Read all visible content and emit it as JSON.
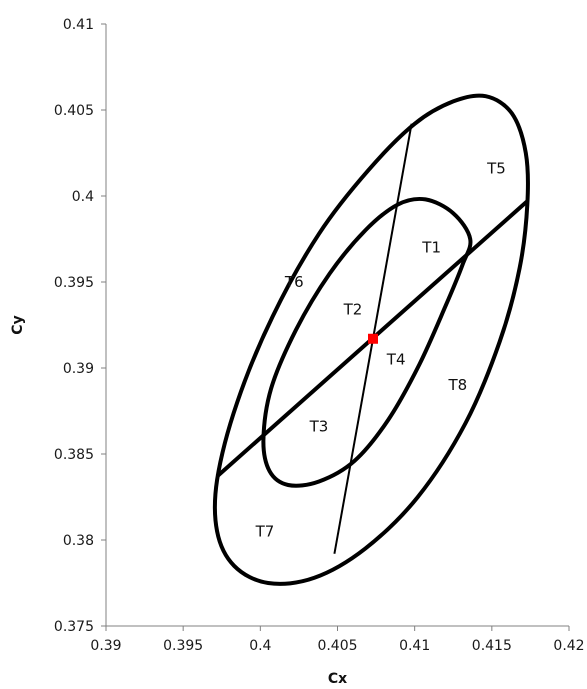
{
  "chart_data": {
    "type": "scatter",
    "xlabel": "Cx",
    "ylabel": "Cy",
    "xlim": [
      0.39,
      0.42
    ],
    "ylim": [
      0.375,
      0.41
    ],
    "x_ticks": [
      "0.39",
      "0.395",
      "0.4",
      "0.405",
      "0.41",
      "0.415",
      "0.42"
    ],
    "y_ticks": [
      "0.375",
      "0.38",
      "0.385",
      "0.39",
      "0.395",
      "0.4",
      "0.405",
      "0.41"
    ],
    "x_tick_values": [
      0.39,
      0.395,
      0.4,
      0.405,
      0.41,
      0.415,
      0.42
    ],
    "y_tick_values": [
      0.375,
      0.38,
      0.385,
      0.39,
      0.395,
      0.4,
      0.405,
      0.41
    ],
    "grid": false,
    "center_point": {
      "x": 0.4073,
      "y": 0.3917,
      "color": "#ff0000"
    },
    "inner_ellipse": [
      [
        0.4136,
        0.3975
      ],
      [
        0.4125,
        0.399
      ],
      [
        0.4107,
        0.3998
      ],
      [
        0.4089,
        0.3995
      ],
      [
        0.4068,
        0.398
      ],
      [
        0.4045,
        0.3955
      ],
      [
        0.4023,
        0.3922
      ],
      [
        0.4007,
        0.3888
      ],
      [
        0.4002,
        0.3858
      ],
      [
        0.4006,
        0.384
      ],
      [
        0.4018,
        0.3832
      ],
      [
        0.4038,
        0.3834
      ],
      [
        0.4061,
        0.3846
      ],
      [
        0.4083,
        0.387
      ],
      [
        0.4103,
        0.3902
      ],
      [
        0.412,
        0.3936
      ],
      [
        0.4131,
        0.396
      ]
    ],
    "outer_ellipse": [
      [
        0.4173,
        0.3995
      ],
      [
        0.4172,
        0.4025
      ],
      [
        0.4163,
        0.4048
      ],
      [
        0.4146,
        0.4058
      ],
      [
        0.4125,
        0.4055
      ],
      [
        0.41,
        0.4042
      ],
      [
        0.407,
        0.4015
      ],
      [
        0.4038,
        0.3978
      ],
      [
        0.4008,
        0.393
      ],
      [
        0.3985,
        0.388
      ],
      [
        0.3972,
        0.3835
      ],
      [
        0.3972,
        0.3805
      ],
      [
        0.3983,
        0.3785
      ],
      [
        0.4005,
        0.3775
      ],
      [
        0.4035,
        0.3778
      ],
      [
        0.4068,
        0.3795
      ],
      [
        0.4102,
        0.3825
      ],
      [
        0.4133,
        0.3868
      ],
      [
        0.4155,
        0.3915
      ],
      [
        0.4168,
        0.3958
      ]
    ],
    "major_axis": [
      [
        0.3972,
        0.3837
      ],
      [
        0.4173,
        0.3997
      ]
    ],
    "minor_axis": [
      [
        0.4048,
        0.3792
      ],
      [
        0.4098,
        0.4042
      ]
    ],
    "region_labels": [
      {
        "text": "T1",
        "x": 0.4111,
        "y": 0.397
      },
      {
        "text": "T2",
        "x": 0.406,
        "y": 0.3934
      },
      {
        "text": "T3",
        "x": 0.4038,
        "y": 0.3866
      },
      {
        "text": "T4",
        "x": 0.4088,
        "y": 0.3905
      },
      {
        "text": "T5",
        "x": 0.4153,
        "y": 0.4016
      },
      {
        "text": "T6",
        "x": 0.4022,
        "y": 0.395
      },
      {
        "text": "T7",
        "x": 0.4003,
        "y": 0.3805
      },
      {
        "text": "T8",
        "x": 0.4128,
        "y": 0.389
      }
    ]
  }
}
